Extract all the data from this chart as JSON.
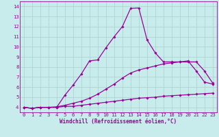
{
  "title": "",
  "xlabel": "Windchill (Refroidissement éolien,°C)",
  "bg_color": "#c8ecec",
  "line_color": "#990099",
  "grid_color": "#aacece",
  "xlim": [
    -0.5,
    23.5
  ],
  "ylim": [
    3.5,
    14.5
  ],
  "xticks": [
    0,
    1,
    2,
    3,
    4,
    5,
    6,
    7,
    8,
    9,
    10,
    11,
    12,
    13,
    14,
    15,
    16,
    17,
    18,
    19,
    20,
    21,
    22,
    23
  ],
  "yticks": [
    4,
    5,
    6,
    7,
    8,
    9,
    10,
    11,
    12,
    13,
    14
  ],
  "lines": [
    {
      "x": [
        0,
        1,
        2,
        3,
        4,
        5,
        6,
        7,
        8,
        9,
        10,
        11,
        12,
        13,
        14,
        15,
        16,
        17,
        18,
        19,
        20,
        21,
        22,
        23
      ],
      "y": [
        4.0,
        3.9,
        4.0,
        4.0,
        4.0,
        4.1,
        4.1,
        4.2,
        4.3,
        4.4,
        4.5,
        4.6,
        4.7,
        4.8,
        4.9,
        4.95,
        5.0,
        5.1,
        5.15,
        5.2,
        5.25,
        5.3,
        5.35,
        5.4
      ]
    },
    {
      "x": [
        0,
        1,
        2,
        3,
        4,
        5,
        6,
        7,
        8,
        9,
        10,
        11,
        12,
        13,
        14,
        15,
        16,
        17,
        18,
        19,
        20,
        21,
        22,
        23
      ],
      "y": [
        4.0,
        3.9,
        4.0,
        4.0,
        4.05,
        4.2,
        4.4,
        4.6,
        4.9,
        5.3,
        5.8,
        6.3,
        6.9,
        7.4,
        7.7,
        7.9,
        8.1,
        8.3,
        8.4,
        8.5,
        8.6,
        7.6,
        6.5,
        6.3
      ]
    },
    {
      "x": [
        0,
        1,
        2,
        3,
        4,
        5,
        6,
        7,
        8,
        9,
        10,
        11,
        12,
        13,
        14,
        15,
        16,
        17,
        18,
        19,
        20,
        21,
        22,
        23
      ],
      "y": [
        4.0,
        3.9,
        4.0,
        4.0,
        4.0,
        5.2,
        6.2,
        7.3,
        8.6,
        8.7,
        9.9,
        11.0,
        12.0,
        13.8,
        13.85,
        10.7,
        9.4,
        8.5,
        8.5,
        8.5,
        8.5,
        8.5,
        7.6,
        6.4
      ]
    }
  ]
}
